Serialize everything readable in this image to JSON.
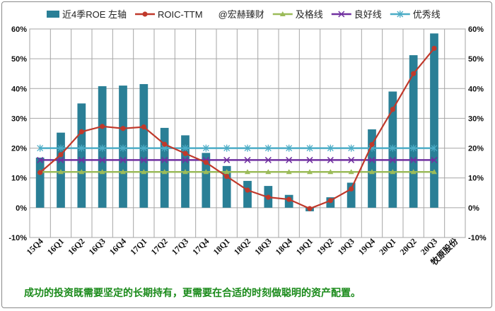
{
  "chart_data": {
    "type": "bar",
    "categories": [
      "15Q4",
      "16Q1",
      "16Q2",
      "16Q3",
      "16Q4",
      "17Q1",
      "17Q2",
      "17Q3",
      "17Q4",
      "18Q1",
      "18Q2",
      "18Q3",
      "18Q4",
      "19Q1",
      "19Q2",
      "19Q3",
      "19Q4",
      "20Q1",
      "20Q2",
      "20Q3"
    ],
    "extra_category_label": "牧原股份",
    "series": [
      {
        "name": "近4季ROE 左轴",
        "type": "bar",
        "color": "#2a7f96",
        "values": [
          16.8,
          25.2,
          35.0,
          40.8,
          41.0,
          41.5,
          26.8,
          24.3,
          18.4,
          14.0,
          9.0,
          7.3,
          4.3,
          -1.2,
          3.5,
          8.4,
          26.3,
          39.0,
          51.2,
          58.5
        ]
      },
      {
        "name": "ROIC-TTM",
        "type": "line",
        "color": "#c0392b",
        "values": [
          11.8,
          17.8,
          25.5,
          27.3,
          26.6,
          27.1,
          21.3,
          18.2,
          15.2,
          10.5,
          5.9,
          3.5,
          2.8,
          -0.3,
          2.4,
          6.3,
          21.2,
          33.0,
          45.0,
          53.5
        ]
      },
      {
        "name": "及格线",
        "type": "line",
        "color": "#9bbb59",
        "values": [
          12,
          12,
          12,
          12,
          12,
          12,
          12,
          12,
          12,
          12,
          12,
          12,
          12,
          12,
          12,
          12,
          12,
          12,
          12,
          12
        ]
      },
      {
        "name": "良好线",
        "type": "line",
        "color": "#7030a0",
        "values": [
          16,
          16,
          16,
          16,
          16,
          16,
          16,
          16,
          16,
          16,
          16,
          16,
          16,
          16,
          16,
          16,
          16,
          16,
          16,
          16
        ]
      },
      {
        "name": "优秀线",
        "type": "line",
        "color": "#4bacc6",
        "values": [
          20,
          20,
          20,
          20,
          20,
          20,
          20,
          20,
          20,
          20,
          20,
          20,
          20,
          20,
          20,
          20,
          20,
          20,
          20,
          20
        ]
      }
    ],
    "watermark_legend": "@宏赫臻财",
    "yticks": [
      "60%",
      "50%",
      "40%",
      "30%",
      "20%",
      "10%",
      "0%",
      "-10%"
    ],
    "ylim": [
      -10,
      60
    ],
    "grid": true,
    "legend_position": "top"
  },
  "caption": "成功的投资既需要坚定的长期持有，更需要在合适的时刻做聪明的资产配置。"
}
